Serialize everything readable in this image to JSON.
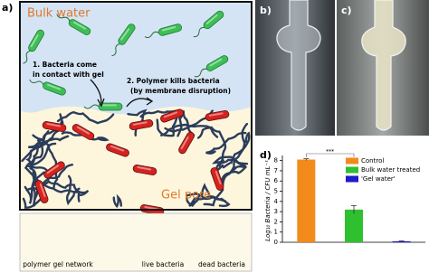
{
  "figure": {
    "panels": [
      "a)",
      "b)",
      "c)",
      "d)"
    ],
    "bulk_label": "Bulk water",
    "gel_label": "Gel pore",
    "step1": [
      "1. Bacteria come",
      "in contact with gel"
    ],
    "step2": [
      "2. Polymer kills bacteria",
      "(by membrane disruption)"
    ],
    "legend": [
      "polymer gel network",
      "live bacteria",
      "dead bacteria"
    ]
  },
  "chart_data": {
    "type": "bar",
    "y_label": "Log₁₀ Bacteria / CFU mL⁻¹",
    "annotation": "***",
    "ylim": [
      0,
      8.5
    ],
    "yticks": [
      0,
      1,
      2,
      3,
      4,
      5,
      6,
      7,
      8
    ],
    "legend_position": "upper right",
    "series": [
      {
        "name": "Control",
        "color": "#f28a1c",
        "values": [
          8.1
        ],
        "errors": [
          0.08
        ]
      },
      {
        "name": "Bulk water treated",
        "color": "#2fc02f",
        "values": [
          3.2
        ],
        "errors": [
          0.4
        ]
      },
      {
        "name": "'Gel water'",
        "color": "#1c1cc8",
        "values": [
          0.1
        ],
        "errors": [
          0.03
        ]
      }
    ]
  }
}
